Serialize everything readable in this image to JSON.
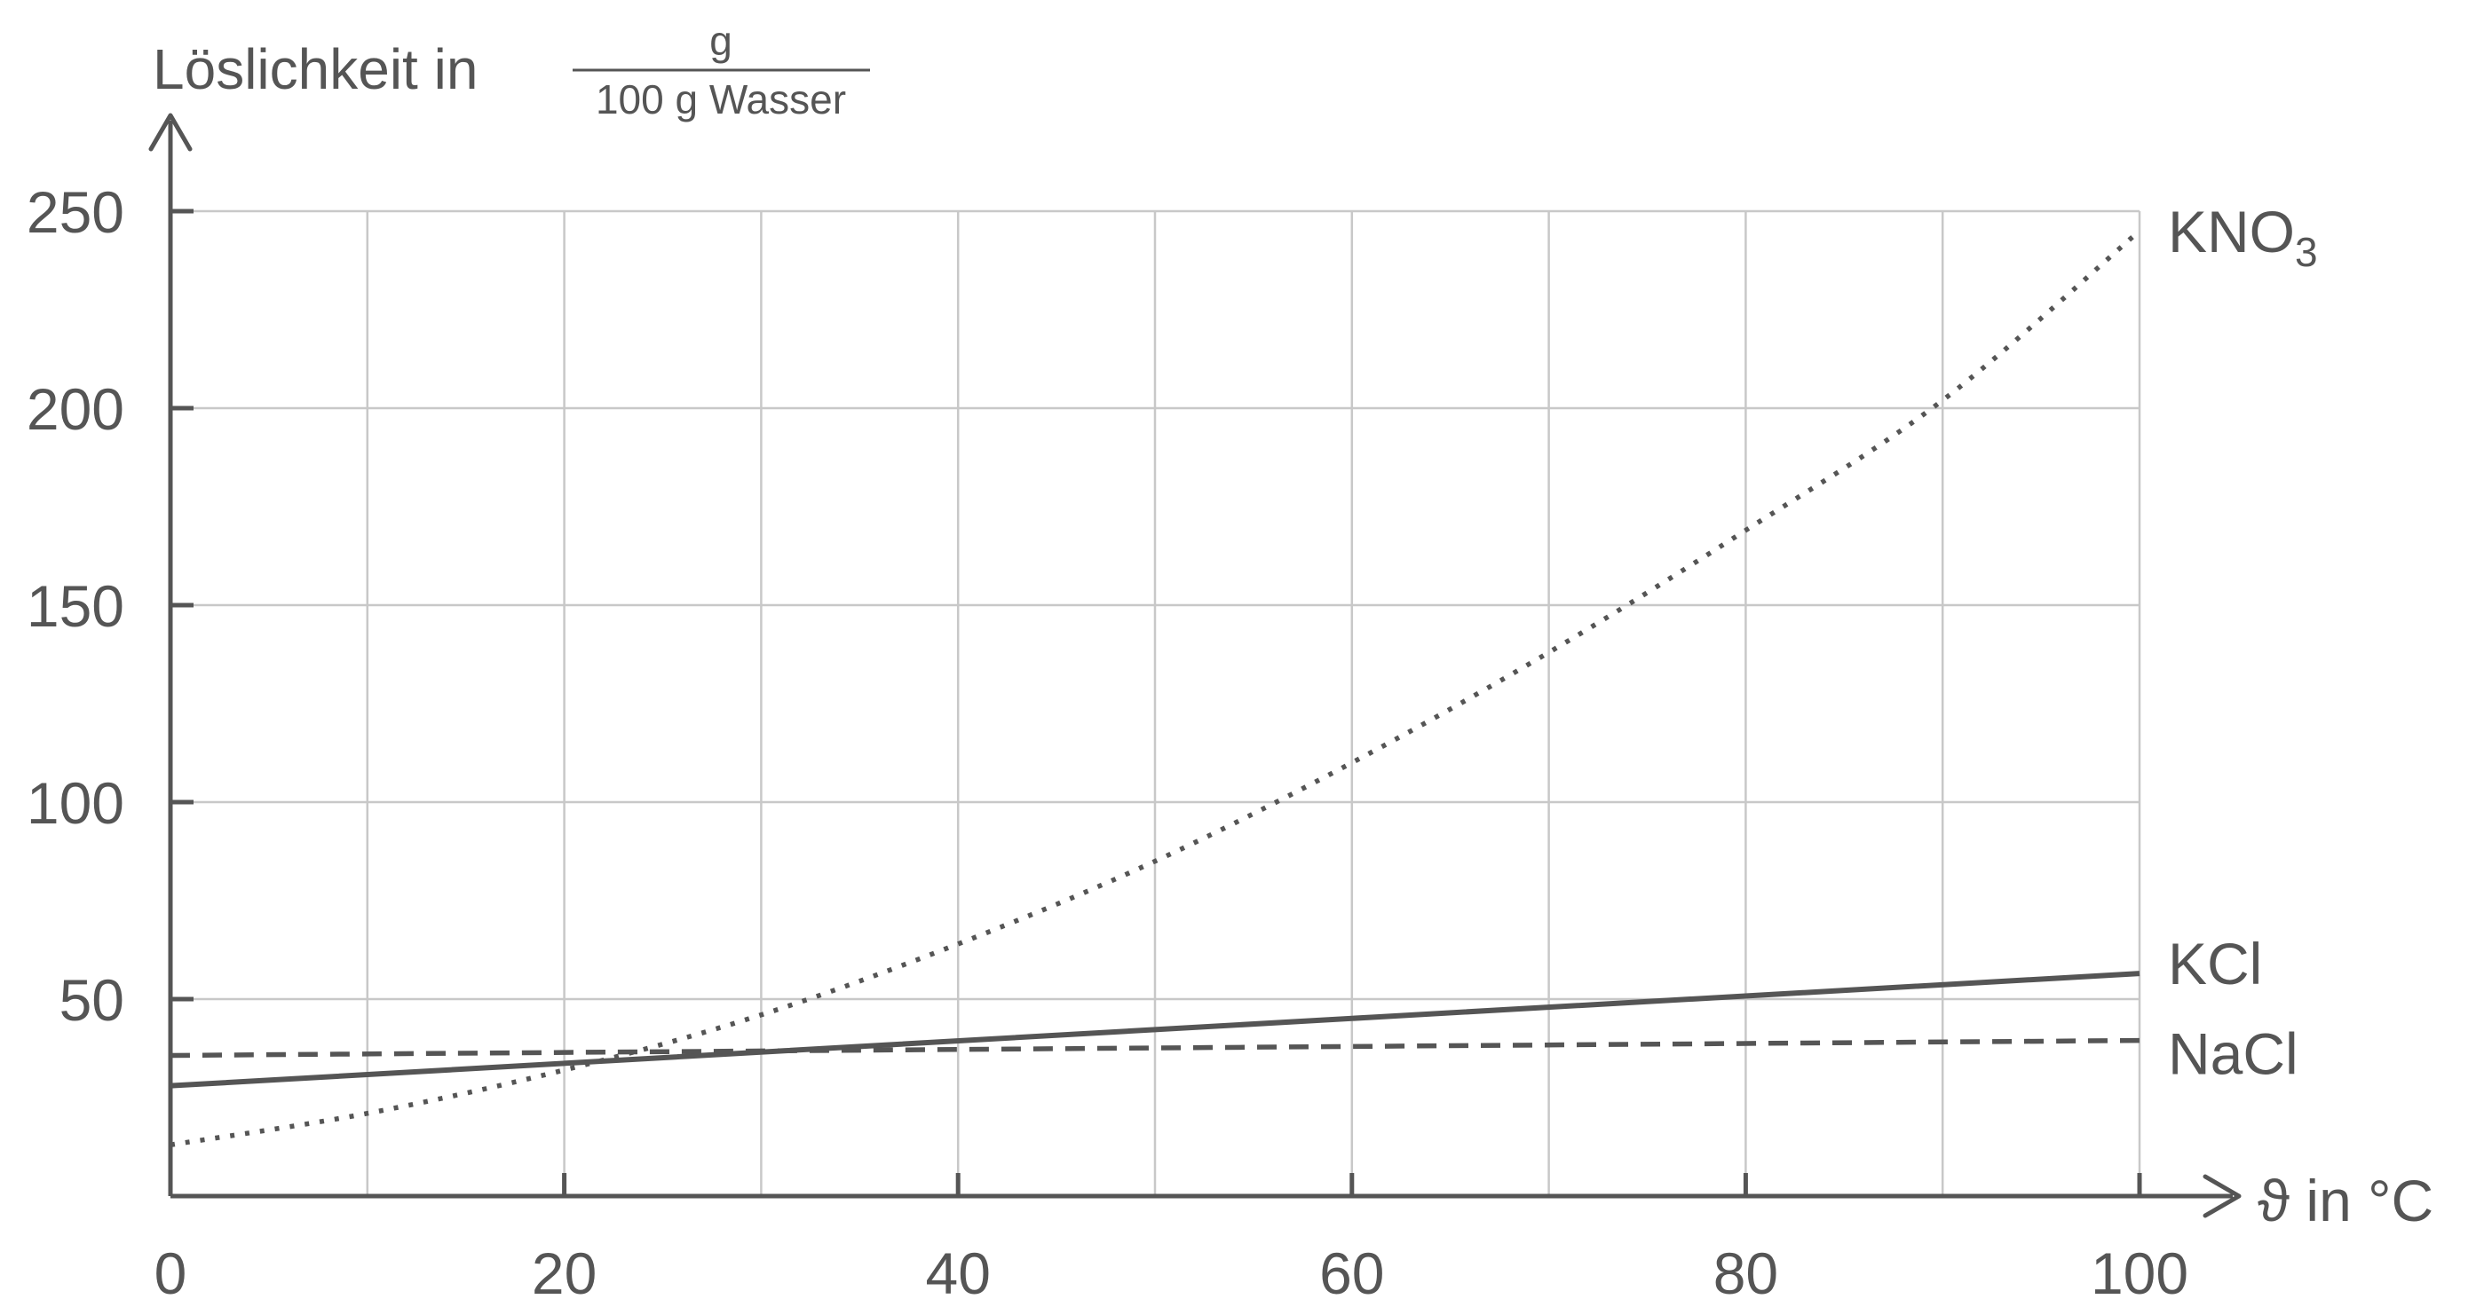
{
  "chart_data": {
    "type": "line",
    "ylabel": {
      "prefix": "Löslichkeit in",
      "numerator": "g",
      "denominator": "100 g Wasser"
    },
    "xlabel": "ϑ in °C",
    "xlim": [
      0,
      100
    ],
    "ylim": [
      0,
      250
    ],
    "x_ticks": [
      0,
      20,
      40,
      60,
      80,
      100
    ],
    "y_ticks": [
      50,
      100,
      150,
      200,
      250
    ],
    "grid": {
      "x_step": 10,
      "y_step": 50,
      "visible": true
    },
    "colors": {
      "line": "#555555",
      "grid": "#c8c8c8",
      "axis": "#555555"
    },
    "series": [
      {
        "name": "KNO3",
        "label_main": "KNO",
        "label_sub": "3",
        "style": "dotted",
        "x": [
          0,
          10,
          20,
          30,
          40,
          50,
          60,
          70,
          80,
          90,
          100
        ],
        "y": [
          13,
          21,
          32,
          46,
          64,
          85,
          110,
          138,
          169,
          202,
          245
        ]
      },
      {
        "name": "KCl",
        "label_main": "KCl",
        "label_sub": "",
        "style": "solid",
        "x": [
          0,
          100
        ],
        "y": [
          28,
          56.5
        ]
      },
      {
        "name": "NaCl",
        "label_main": "NaCl",
        "label_sub": "",
        "style": "dashed",
        "x": [
          0,
          100
        ],
        "y": [
          35.7,
          39.5
        ]
      }
    ]
  }
}
